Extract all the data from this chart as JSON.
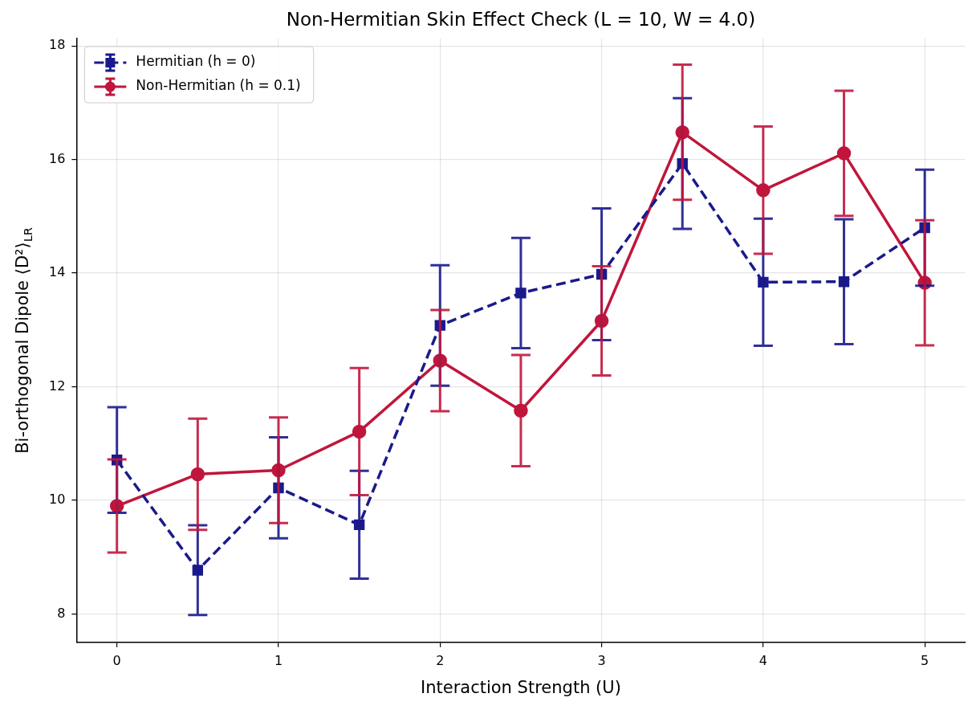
{
  "chart_data": {
    "type": "line",
    "title": "Non-Hermitian Skin Effect Check (L = 10, W = 4.0)",
    "xlabel": "Interaction Strength (U)",
    "ylabel": "Bi-orthogonal Dipole ⟨D²⟩$_{LR}$",
    "x": [
      0,
      0.5,
      1,
      1.5,
      2,
      2.5,
      3,
      3.5,
      4,
      4.5,
      5
    ],
    "series": [
      {
        "name": "Hermitian (h = 0)",
        "color": "#1a1a8c",
        "marker": "square",
        "line_style": "dashed",
        "values": [
          10.71,
          8.77,
          10.22,
          9.57,
          13.08,
          13.65,
          13.98,
          15.93,
          13.84,
          13.85,
          14.8
        ],
        "errors": [
          0.93,
          0.79,
          0.89,
          0.95,
          1.06,
          0.97,
          1.16,
          1.15,
          1.12,
          1.1,
          1.02
        ]
      },
      {
        "name": "Non-Hermitian (h = 0.1)",
        "color": "#c0163c",
        "marker": "circle",
        "line_style": "solid",
        "values": [
          9.9,
          10.46,
          10.53,
          11.21,
          12.46,
          11.58,
          13.16,
          16.48,
          15.46,
          16.11,
          13.83
        ],
        "errors": [
          0.82,
          0.98,
          0.93,
          1.12,
          0.89,
          0.98,
          0.96,
          1.19,
          1.12,
          1.1,
          1.1
        ]
      }
    ],
    "xlim": [
      -0.25,
      5.25
    ],
    "xticks": [
      0,
      1,
      2,
      3,
      4,
      5
    ],
    "ylim": [
      7.5,
      18.13
    ],
    "yticks": [
      8,
      10,
      12,
      14,
      16,
      18
    ],
    "grid": true,
    "legend": "top left"
  }
}
